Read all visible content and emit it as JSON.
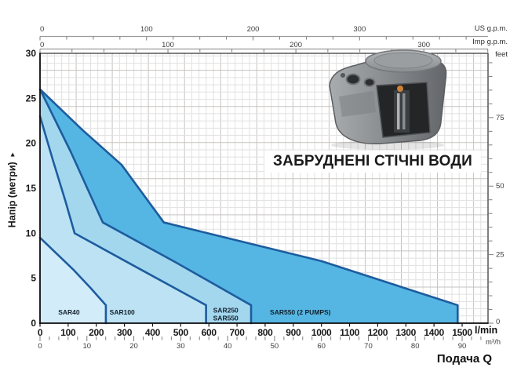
{
  "colors": {
    "curve_stroke": "#1d5c9e",
    "fill_sar550_2pumps": "#55b6e3",
    "fill_sar250_550": "#a3d7ee",
    "fill_sar100": "#bce2f4",
    "fill_sar40": "#d3ecf9",
    "grid_minor": "#e1e1e1",
    "grid_major": "#c7c3c0",
    "axis_gray": "#9b9b9b",
    "tick_gray": "#7d7d7d",
    "text_dark": "#1a1a1a",
    "text_secondary": "#3f3f3f"
  },
  "chart_data": {
    "type": "area",
    "title": "ЗАБРУДНЕНІ СТІЧНІ ВОДИ",
    "flow_label": "Подача Q",
    "y_axis_m": {
      "label": "Напір (метри)",
      "arrow": "▸",
      "ticks": [
        0,
        5,
        10,
        15,
        20,
        25,
        30
      ],
      "max": 30
    },
    "y_axis_feet": {
      "unit": "feet",
      "labeled": [
        0,
        25,
        50,
        75
      ],
      "minor_step": 5,
      "max": 95,
      "m_per_unit": 0.3048
    },
    "x_axis_lmin": {
      "unit": "l/min",
      "ticks": [
        0,
        100,
        200,
        300,
        400,
        500,
        600,
        700,
        800,
        900,
        1000,
        1100,
        1200,
        1300,
        1400,
        1500
      ],
      "plot_max": 1592
    },
    "x_axis_m3h": {
      "unit": "m³/h",
      "labeled": [
        0,
        10,
        20,
        30,
        40,
        50,
        60,
        70,
        80,
        90
      ],
      "minor_step": 2,
      "max": 94,
      "lmin_per_unit": 16.6667
    },
    "x_axis_usgpm": {
      "unit": "US g.p.m.",
      "labeled": [
        0,
        100,
        200,
        300
      ],
      "minor_step": 25,
      "max": 400,
      "lmin_per_unit": 3.78541
    },
    "x_axis_impgpm": {
      "unit": "Imp g.p.m.",
      "labeled": [
        0,
        100,
        200,
        300
      ],
      "minor_step": 25,
      "max": 350,
      "lmin_per_unit": 4.54609
    },
    "series": [
      {
        "name": "sar550-2pumps",
        "label": "SAR550 (2 PUMPS)",
        "fill": "#55b6e3",
        "points": [
          [
            0,
            26
          ],
          [
            150,
            21.5
          ],
          [
            290,
            17.6
          ],
          [
            440,
            11.2
          ],
          [
            1000,
            6.9
          ],
          [
            1484,
            2
          ],
          [
            1484,
            0
          ]
        ],
        "label_q": 925,
        "label_h": 1.2
      },
      {
        "name": "sar250-sar550",
        "label": "SAR250\nSAR550",
        "fill": "#a3d7ee",
        "points": [
          [
            0,
            26
          ],
          [
            110,
            19
          ],
          [
            223,
            11.2
          ],
          [
            480,
            6.8
          ],
          [
            750,
            2
          ],
          [
            750,
            0
          ]
        ],
        "label_q": 660,
        "label_h": 1.1
      },
      {
        "name": "sar100",
        "label": "SAR100",
        "fill": "#bce2f4",
        "points": [
          [
            0,
            23
          ],
          [
            45,
            18.2
          ],
          [
            90,
            13.6
          ],
          [
            123,
            10
          ],
          [
            350,
            6.1
          ],
          [
            590,
            2
          ],
          [
            590,
            0
          ]
        ],
        "label_q": 292,
        "label_h": 1.2
      },
      {
        "name": "sar40",
        "label": "SAR40",
        "fill": "#d3ecf9",
        "points": [
          [
            0,
            9.5
          ],
          [
            60,
            7.7
          ],
          [
            120,
            5.9
          ],
          [
            180,
            3.9
          ],
          [
            234,
            2
          ],
          [
            234,
            0
          ]
        ],
        "label_q": 103,
        "label_h": 1.2
      }
    ]
  }
}
